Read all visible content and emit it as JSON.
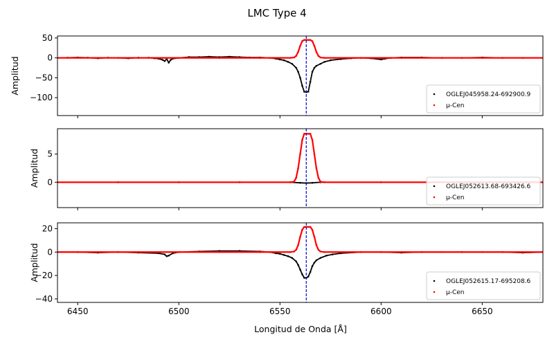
{
  "title": "LMC Type 4",
  "xlabel": "Longitud de Onda [Å]",
  "colors": {
    "star": "#000000",
    "model": "#ff0000",
    "vline": "#0000cc"
  },
  "chart_data": [
    {
      "type": "scatter",
      "ylabel": "Amplitud",
      "xlim": [
        6440,
        6680
      ],
      "ylim": [
        -145,
        55
      ],
      "xticks": [
        6450,
        6500,
        6550,
        6600,
        6650
      ],
      "yticks": [
        50,
        0,
        -50,
        -100
      ],
      "vline_x": 6563,
      "legend_position": "lower-right",
      "series": [
        {
          "name": "OGLEJ045958.24-692900.9",
          "color": "#000000",
          "points": [
            [
              6440,
              0
            ],
            [
              6445,
              0.5
            ],
            [
              6450,
              1
            ],
            [
              6455,
              0.5
            ],
            [
              6460,
              -1
            ],
            [
              6465,
              0.5
            ],
            [
              6470,
              0
            ],
            [
              6475,
              -1
            ],
            [
              6480,
              0.5
            ],
            [
              6485,
              0.5
            ],
            [
              6488,
              -1
            ],
            [
              6490,
              -2
            ],
            [
              6492,
              -5
            ],
            [
              6493,
              -8
            ],
            [
              6494,
              -3
            ],
            [
              6495,
              -12
            ],
            [
              6496,
              -5
            ],
            [
              6497,
              -2
            ],
            [
              6500,
              0
            ],
            [
              6505,
              2
            ],
            [
              6510,
              2
            ],
            [
              6515,
              3
            ],
            [
              6520,
              2
            ],
            [
              6525,
              3
            ],
            [
              6530,
              2
            ],
            [
              6535,
              1
            ],
            [
              6540,
              1
            ],
            [
              6545,
              0
            ],
            [
              6548,
              -2
            ],
            [
              6550,
              -4
            ],
            [
              6552,
              -6
            ],
            [
              6554,
              -10
            ],
            [
              6556,
              -15
            ],
            [
              6558,
              -25
            ],
            [
              6559,
              -35
            ],
            [
              6560,
              -50
            ],
            [
              6561,
              -70
            ],
            [
              6562,
              -85
            ],
            [
              6563,
              -86
            ],
            [
              6564,
              -85
            ],
            [
              6565,
              -60
            ],
            [
              6566,
              -35
            ],
            [
              6567,
              -25
            ],
            [
              6568,
              -20
            ],
            [
              6570,
              -15
            ],
            [
              6572,
              -10
            ],
            [
              6575,
              -6
            ],
            [
              6580,
              -3
            ],
            [
              6585,
              -1
            ],
            [
              6590,
              0
            ],
            [
              6595,
              -1
            ],
            [
              6600,
              -4
            ],
            [
              6602,
              -2
            ],
            [
              6605,
              0
            ],
            [
              6610,
              1
            ],
            [
              6620,
              1
            ],
            [
              6630,
              0
            ],
            [
              6640,
              0
            ],
            [
              6650,
              1
            ],
            [
              6660,
              0
            ],
            [
              6670,
              0
            ],
            [
              6680,
              0
            ]
          ]
        },
        {
          "name": "μ-Cen",
          "color": "#ff0000",
          "points": [
            [
              6440,
              0
            ],
            [
              6460,
              0
            ],
            [
              6480,
              0
            ],
            [
              6500,
              0
            ],
            [
              6520,
              0
            ],
            [
              6540,
              0
            ],
            [
              6555,
              0
            ],
            [
              6557,
              1
            ],
            [
              6558,
              5
            ],
            [
              6559,
              15
            ],
            [
              6560,
              30
            ],
            [
              6561,
              42
            ],
            [
              6562,
              45
            ],
            [
              6563,
              45
            ],
            [
              6564,
              45
            ],
            [
              6565,
              45
            ],
            [
              6566,
              42
            ],
            [
              6567,
              30
            ],
            [
              6568,
              15
            ],
            [
              6569,
              5
            ],
            [
              6570,
              1
            ],
            [
              6572,
              0
            ],
            [
              6590,
              0
            ],
            [
              6610,
              0
            ],
            [
              6630,
              0
            ],
            [
              6650,
              0
            ],
            [
              6670,
              0
            ],
            [
              6680,
              0
            ]
          ]
        }
      ]
    },
    {
      "type": "scatter",
      "ylabel": "Amplitud",
      "xlim": [
        6440,
        6680
      ],
      "ylim": [
        -4.5,
        9.5
      ],
      "xticks": [
        6450,
        6500,
        6550,
        6600,
        6650
      ],
      "yticks": [
        5,
        0
      ],
      "vline_x": 6563,
      "legend_position": "lower-right",
      "series": [
        {
          "name": "OGLEJ052613.68-693426.6",
          "color": "#000000",
          "points": [
            [
              6440,
              0
            ],
            [
              6470,
              0
            ],
            [
              6500,
              0
            ],
            [
              6530,
              0
            ],
            [
              6555,
              0
            ],
            [
              6560,
              -0.1
            ],
            [
              6563,
              -0.15
            ],
            [
              6566,
              -0.1
            ],
            [
              6570,
              0
            ],
            [
              6600,
              0
            ],
            [
              6640,
              0
            ],
            [
              6680,
              0
            ]
          ]
        },
        {
          "name": "μ-Cen",
          "color": "#ff0000",
          "points": [
            [
              6440,
              0
            ],
            [
              6470,
              0
            ],
            [
              6500,
              0
            ],
            [
              6530,
              0
            ],
            [
              6555,
              0
            ],
            [
              6557,
              0.1
            ],
            [
              6558,
              0.8
            ],
            [
              6559,
              2.5
            ],
            [
              6560,
              5
            ],
            [
              6561,
              7.5
            ],
            [
              6562,
              8.6
            ],
            [
              6563,
              8.6
            ],
            [
              6564,
              8.6
            ],
            [
              6565,
              8.6
            ],
            [
              6566,
              7.5
            ],
            [
              6567,
              5
            ],
            [
              6568,
              2.5
            ],
            [
              6569,
              0.8
            ],
            [
              6570,
              0.1
            ],
            [
              6572,
              0
            ],
            [
              6600,
              0
            ],
            [
              6640,
              0
            ],
            [
              6680,
              0
            ]
          ]
        }
      ]
    },
    {
      "type": "scatter",
      "ylabel": "Amplitud",
      "xlim": [
        6440,
        6680
      ],
      "ylim": [
        -43,
        25
      ],
      "xticks": [
        6450,
        6500,
        6550,
        6600,
        6650
      ],
      "yticks": [
        20,
        0,
        -20,
        -40
      ],
      "vline_x": 6563,
      "legend_position": "lower-right",
      "series": [
        {
          "name": "OGLEJ052615.17-695208.6",
          "color": "#000000",
          "points": [
            [
              6440,
              0
            ],
            [
              6450,
              0
            ],
            [
              6460,
              -0.5
            ],
            [
              6470,
              0
            ],
            [
              6480,
              -0.5
            ],
            [
              6490,
              -1
            ],
            [
              6493,
              -2
            ],
            [
              6494,
              -3.5
            ],
            [
              6495,
              -3
            ],
            [
              6497,
              -1
            ],
            [
              6500,
              0
            ],
            [
              6510,
              0.5
            ],
            [
              6520,
              1
            ],
            [
              6530,
              1
            ],
            [
              6540,
              0.5
            ],
            [
              6545,
              0
            ],
            [
              6548,
              -1
            ],
            [
              6550,
              -1.5
            ],
            [
              6552,
              -2.5
            ],
            [
              6554,
              -3.5
            ],
            [
              6556,
              -5
            ],
            [
              6558,
              -8
            ],
            [
              6559,
              -11
            ],
            [
              6560,
              -15
            ],
            [
              6561,
              -19
            ],
            [
              6562,
              -22
            ],
            [
              6563,
              -22
            ],
            [
              6564,
              -21
            ],
            [
              6565,
              -17
            ],
            [
              6566,
              -12
            ],
            [
              6567,
              -9
            ],
            [
              6568,
              -7
            ],
            [
              6570,
              -5
            ],
            [
              6573,
              -3
            ],
            [
              6576,
              -2
            ],
            [
              6580,
              -1
            ],
            [
              6590,
              0
            ],
            [
              6600,
              0
            ],
            [
              6610,
              -0.5
            ],
            [
              6620,
              0
            ],
            [
              6640,
              0
            ],
            [
              6660,
              0
            ],
            [
              6670,
              -0.5
            ],
            [
              6680,
              0
            ]
          ]
        },
        {
          "name": "μ-Cen",
          "color": "#ff0000",
          "points": [
            [
              6440,
              0
            ],
            [
              6460,
              0
            ],
            [
              6480,
              0
            ],
            [
              6500,
              0
            ],
            [
              6520,
              0
            ],
            [
              6540,
              0
            ],
            [
              6555,
              0
            ],
            [
              6557,
              0.5
            ],
            [
              6558,
              2
            ],
            [
              6559,
              6
            ],
            [
              6560,
              13
            ],
            [
              6561,
              19
            ],
            [
              6562,
              21.5
            ],
            [
              6563,
              21.5
            ],
            [
              6564,
              21.5
            ],
            [
              6565,
              21.5
            ],
            [
              6566,
              19
            ],
            [
              6567,
              13
            ],
            [
              6568,
              6
            ],
            [
              6569,
              2
            ],
            [
              6570,
              0.5
            ],
            [
              6572,
              0
            ],
            [
              6590,
              0
            ],
            [
              6610,
              0
            ],
            [
              6630,
              0
            ],
            [
              6650,
              0
            ],
            [
              6670,
              0
            ],
            [
              6680,
              0
            ]
          ]
        }
      ]
    }
  ]
}
